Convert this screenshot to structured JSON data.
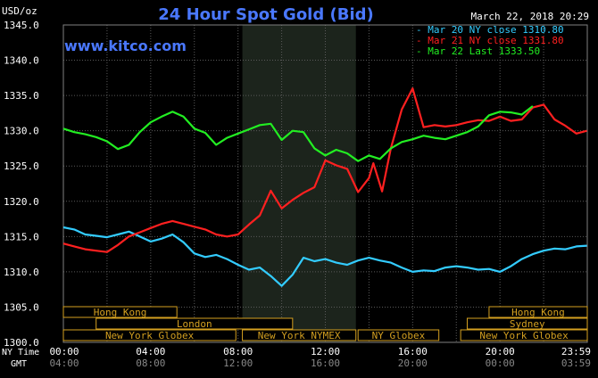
{
  "chart_data": {
    "type": "line",
    "title": "24 Hour Spot Gold (Bid)",
    "ylabel": "USD/oz",
    "date": "March 22, 2018 20:29",
    "watermark": "www.kitco.com",
    "ylim": [
      1300,
      1345
    ],
    "yticks": [
      "1345.0",
      "1340.0",
      "1335.0",
      "1330.0",
      "1325.0",
      "1320.0",
      "1315.0",
      "1310.0",
      "1305.0",
      "1300.0"
    ],
    "x_axis": {
      "ny_label": "NY Time",
      "gmt_label": "GMT",
      "ny_ticks": [
        "00:00",
        "04:00",
        "08:00",
        "12:00",
        "16:00",
        "20:00",
        "23:59"
      ],
      "gmt_ticks": [
        "04:00",
        "08:00",
        "12:00",
        "16:00",
        "20:00",
        "00:00",
        "03:59"
      ]
    },
    "legend": [
      {
        "label": "Mar 20 NY close 1310.80",
        "color": "#33ccff"
      },
      {
        "label": "Mar 21 NY close 1331.80",
        "color": "#ff2020"
      },
      {
        "label": "Mar 22 Last 1333.50",
        "color": "#22ee22"
      }
    ],
    "markets": [
      {
        "label": "Hong Kong",
        "start": 0,
        "end": 5.2,
        "row": 0
      },
      {
        "label": "London",
        "start": 1.5,
        "end": 10.5,
        "row": 1
      },
      {
        "label": "New York Globex",
        "start": 0,
        "end": 7.9,
        "row": 2
      },
      {
        "label": "New York NYMEX",
        "start": 8.2,
        "end": 13.4,
        "row": 2
      },
      {
        "label": "NY Globex",
        "start": 13.5,
        "end": 17.2,
        "row": 2
      },
      {
        "label": "Hong Kong",
        "start": 19.5,
        "end": 24,
        "row": 0
      },
      {
        "label": "Sydney",
        "start": 18.5,
        "end": 24,
        "row": 1
      },
      {
        "label": "New York Globex",
        "start": 18.2,
        "end": 24,
        "row": 2
      }
    ],
    "series": [
      {
        "name": "Mar 20 NY close 1310.80",
        "color": "#33ccff",
        "x": [
          0,
          0.5,
          1,
          1.5,
          2,
          2.5,
          3,
          3.5,
          4,
          4.5,
          5,
          5.5,
          6,
          6.5,
          7,
          7.5,
          8,
          8.5,
          9,
          9.5,
          10,
          10.5,
          11,
          11.5,
          12,
          12.5,
          13,
          13.5,
          14,
          14.5,
          15,
          15.5,
          16,
          16.5,
          17,
          17.5,
          18,
          18.5,
          19,
          19.5,
          20,
          20.5,
          21,
          21.5,
          22,
          22.5,
          23,
          23.5,
          23.98
        ],
        "y": [
          1316.3,
          1316.0,
          1315.3,
          1315.1,
          1314.9,
          1315.3,
          1315.7,
          1315.0,
          1314.3,
          1314.7,
          1315.3,
          1314.2,
          1312.6,
          1312.1,
          1312.4,
          1311.8,
          1311.0,
          1310.3,
          1310.6,
          1309.4,
          1308.0,
          1309.6,
          1312.0,
          1311.5,
          1311.8,
          1311.3,
          1311.0,
          1311.6,
          1312.0,
          1311.6,
          1311.3,
          1310.6,
          1310.0,
          1310.2,
          1310.1,
          1310.6,
          1310.8,
          1310.6,
          1310.3,
          1310.4,
          1310.0,
          1310.8,
          1311.8,
          1312.5,
          1313.0,
          1313.3,
          1313.2,
          1313.6,
          1313.7
        ]
      },
      {
        "name": "Mar 21 NY close 1331.80",
        "color": "#ff2020",
        "x": [
          0,
          0.5,
          1,
          1.5,
          2,
          2.5,
          3,
          3.5,
          4,
          4.5,
          5,
          5.5,
          6,
          6.5,
          7,
          7.5,
          8,
          8.5,
          9,
          9.5,
          10,
          10.5,
          11,
          11.5,
          12,
          12.5,
          13,
          13.5,
          14,
          14.2,
          14.6,
          15,
          15.5,
          16,
          16.5,
          17,
          17.5,
          18,
          18.5,
          19,
          19.5,
          20,
          20.5,
          21,
          21.5,
          22,
          22.5,
          23,
          23.5,
          23.98
        ],
        "y": [
          1314.0,
          1313.6,
          1313.2,
          1313.0,
          1312.8,
          1313.8,
          1315.0,
          1315.6,
          1316.2,
          1316.8,
          1317.2,
          1316.8,
          1316.4,
          1316.0,
          1315.3,
          1315.0,
          1315.3,
          1316.7,
          1318.0,
          1321.5,
          1319.0,
          1320.2,
          1321.2,
          1322.0,
          1325.8,
          1325.1,
          1324.6,
          1321.3,
          1323.3,
          1325.4,
          1321.4,
          1327.5,
          1333.0,
          1336.0,
          1330.5,
          1330.8,
          1330.6,
          1330.8,
          1331.2,
          1331.5,
          1331.4,
          1332.0,
          1331.4,
          1331.6,
          1333.3,
          1333.7,
          1331.6,
          1330.7,
          1329.6,
          1330.0
        ]
      },
      {
        "name": "Mar 22 Last 1333.50",
        "color": "#22ee22",
        "x": [
          0,
          0.5,
          1,
          1.5,
          2,
          2.5,
          3,
          3.5,
          4,
          4.5,
          5,
          5.5,
          6,
          6.5,
          7,
          7.5,
          8,
          8.5,
          9,
          9.5,
          10,
          10.5,
          11,
          11.5,
          12,
          12.5,
          13,
          13.5,
          14,
          14.5,
          15,
          15.5,
          16,
          16.5,
          17,
          17.5,
          18,
          18.5,
          19,
          19.5,
          20,
          20.5,
          21,
          21.5
        ],
        "y": [
          1330.3,
          1329.8,
          1329.5,
          1329.1,
          1328.5,
          1327.4,
          1328.0,
          1329.8,
          1331.2,
          1332.0,
          1332.7,
          1332.0,
          1330.3,
          1329.7,
          1328.0,
          1329.0,
          1329.6,
          1330.2,
          1330.8,
          1331.0,
          1328.7,
          1330.0,
          1329.8,
          1327.5,
          1326.5,
          1327.3,
          1326.8,
          1325.7,
          1326.5,
          1326.0,
          1327.5,
          1328.4,
          1328.8,
          1329.3,
          1329.0,
          1328.8,
          1329.3,
          1329.8,
          1330.6,
          1332.2,
          1332.7,
          1332.6,
          1332.3,
          1333.5
        ]
      }
    ]
  }
}
